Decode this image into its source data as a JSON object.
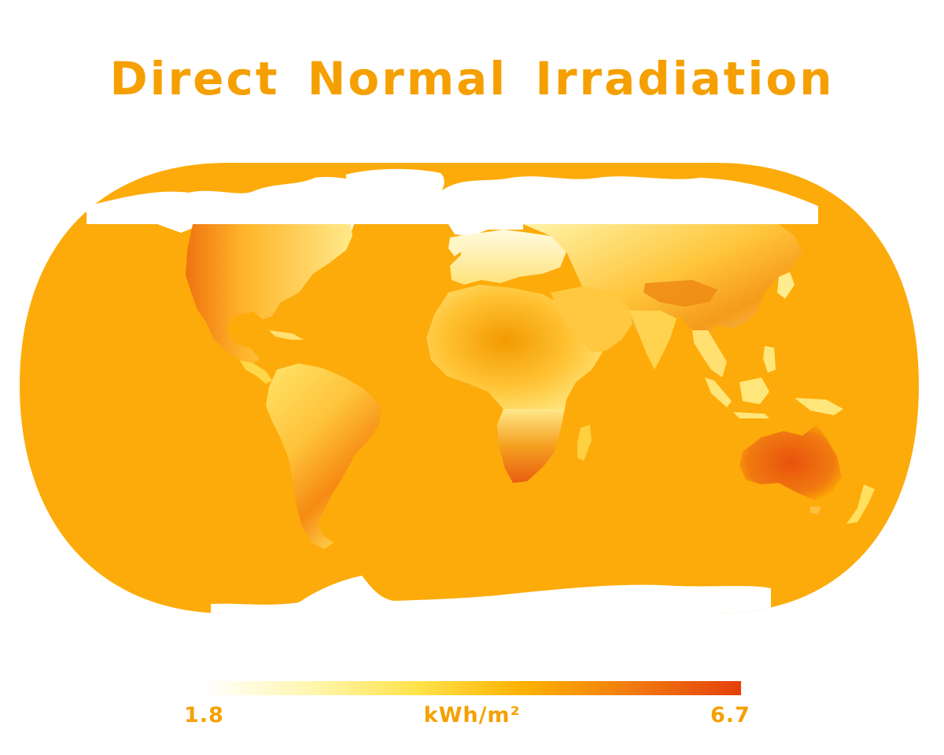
{
  "title": "Direct Normal Irradiation",
  "legend": {
    "min_label": "1.8",
    "max_label": "6.7",
    "unit": "kWh/m²",
    "min_value": 1.8,
    "max_value": 6.7,
    "gradient": [
      "#ffffff",
      "#fff6b0",
      "#ffe24a",
      "#ffb000",
      "#f07a10",
      "#e5400a"
    ]
  },
  "colors": {
    "ocean": "#fdab0a",
    "ice": "#ffffff",
    "title": "#f5a000"
  }
}
